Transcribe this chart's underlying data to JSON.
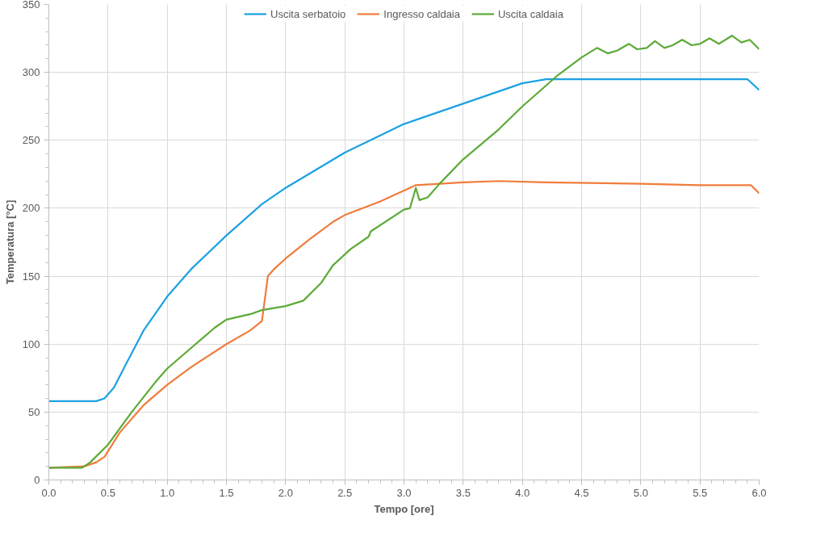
{
  "chart_data": {
    "type": "line",
    "xlabel": "Tempo [ore]",
    "ylabel": "Temperatura [°C]",
    "xlim": [
      0,
      6
    ],
    "ylim": [
      0,
      350
    ],
    "xticks": [
      {
        "value": 0,
        "label": "0.0"
      },
      {
        "value": 0.5,
        "label": "0.5"
      },
      {
        "value": 1,
        "label": "1.0"
      },
      {
        "value": 1.5,
        "label": "1.5"
      },
      {
        "value": 2,
        "label": "2.0"
      },
      {
        "value": 2.5,
        "label": "2.5"
      },
      {
        "value": 3,
        "label": "3.0"
      },
      {
        "value": 3.5,
        "label": "3.5"
      },
      {
        "value": 4,
        "label": "4.0"
      },
      {
        "value": 4.5,
        "label": "4.5"
      },
      {
        "value": 5,
        "label": "5.0"
      },
      {
        "value": 5.5,
        "label": "5.5"
      },
      {
        "value": 6,
        "label": "6.0"
      }
    ],
    "yticks": [
      0,
      50,
      100,
      150,
      200,
      250,
      300,
      350
    ],
    "grid": true,
    "legend": "top",
    "marker": "none",
    "line_style": "solid",
    "series": [
      {
        "name": "Uscita serbatoio",
        "color": "#1ba1e2",
        "x": [
          0,
          0.2,
          0.4,
          0.47,
          0.55,
          0.65,
          0.8,
          1.0,
          1.2,
          1.5,
          1.8,
          2.0,
          2.5,
          3.0,
          3.5,
          4.0,
          4.2,
          5.0,
          5.9,
          6.0
        ],
        "values": [
          58,
          58,
          58,
          60,
          68,
          85,
          110,
          135,
          155,
          180,
          203,
          215,
          241,
          262,
          277,
          292,
          295,
          295,
          295,
          287
        ]
      },
      {
        "name": "Ingresso caldaia",
        "color": "#f07c3c",
        "x": [
          0,
          0.3,
          0.4,
          0.47,
          0.6,
          0.8,
          1.0,
          1.2,
          1.5,
          1.7,
          1.8,
          1.82,
          1.85,
          1.9,
          2.0,
          2.2,
          2.4,
          2.5,
          2.8,
          3.0,
          3.1,
          3.5,
          3.8,
          4.2,
          5.0,
          5.5,
          5.93,
          6.0
        ],
        "values": [
          9,
          10,
          13,
          17,
          35,
          55,
          70,
          83,
          100,
          110,
          117,
          130,
          150,
          155,
          163,
          177,
          190,
          195,
          205,
          213,
          217,
          219,
          220,
          219,
          218,
          217,
          217,
          211
        ]
      },
      {
        "name": "Uscita caldaia",
        "color": "#5daa38",
        "x": [
          0,
          0.28,
          0.35,
          0.5,
          0.7,
          0.9,
          1.0,
          1.2,
          1.4,
          1.5,
          1.7,
          1.8,
          2.0,
          2.15,
          2.3,
          2.4,
          2.55,
          2.7,
          2.72,
          3.0,
          3.05,
          3.1,
          3.13,
          3.2,
          3.3,
          3.5,
          3.8,
          4.0,
          4.3,
          4.5,
          4.63,
          4.72,
          4.8,
          4.9,
          4.97,
          5.05,
          5.12,
          5.2,
          5.27,
          5.35,
          5.43,
          5.5,
          5.58,
          5.66,
          5.77,
          5.85,
          5.92,
          6.0
        ],
        "values": [
          9,
          9,
          13,
          26,
          50,
          72,
          82,
          97,
          112,
          118,
          122,
          125,
          128,
          132,
          145,
          158,
          170,
          179,
          183,
          199,
          200,
          215,
          206,
          208,
          218,
          236,
          258,
          275,
          298,
          311,
          318,
          314,
          316,
          321,
          317,
          318,
          323,
          318,
          320,
          324,
          320,
          321,
          325,
          321,
          327,
          322,
          324,
          317
        ]
      }
    ]
  }
}
